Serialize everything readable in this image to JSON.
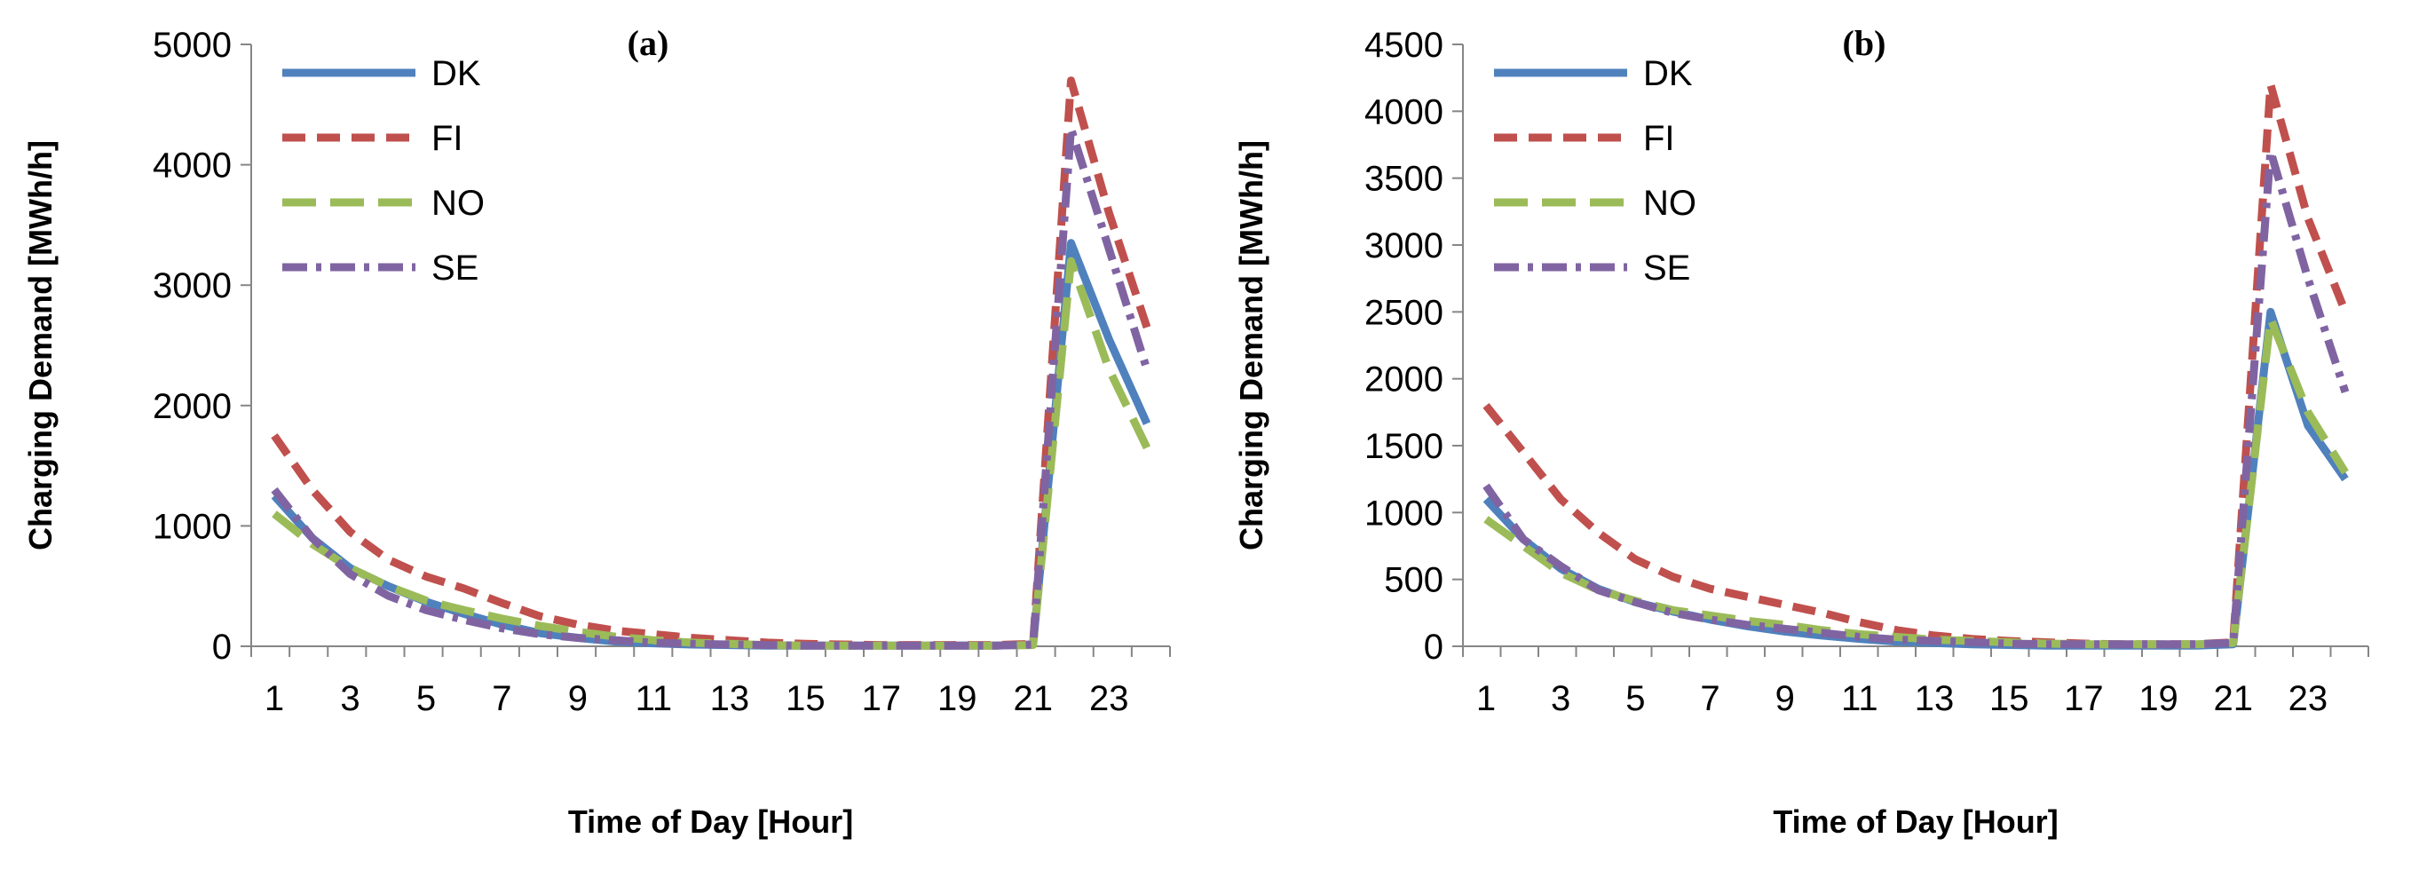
{
  "chart_data": [
    {
      "type": "line",
      "panel_label": "(a)",
      "xlabel": "Time of Day [Hour]",
      "ylabel": "Charging Demand [MWh/h]",
      "ylim": [
        0,
        5000
      ],
      "yticks": [
        0,
        1000,
        2000,
        3000,
        4000,
        5000
      ],
      "xlim": [
        1,
        24
      ],
      "xticks": [
        1,
        3,
        5,
        7,
        9,
        11,
        13,
        15,
        17,
        19,
        21,
        23
      ],
      "legend_position": "top-left",
      "x": [
        1,
        2,
        3,
        4,
        5,
        6,
        7,
        8,
        9,
        10,
        11,
        12,
        13,
        14,
        15,
        16,
        17,
        18,
        19,
        20,
        21,
        22,
        23,
        24
      ],
      "series": [
        {
          "name": "DK",
          "color": "#4f81bd",
          "dash": "solid",
          "values": [
            1250,
            900,
            650,
            500,
            370,
            270,
            180,
            110,
            70,
            40,
            25,
            15,
            10,
            5,
            5,
            5,
            5,
            5,
            5,
            5,
            15,
            3350,
            2550,
            1850
          ]
        },
        {
          "name": "FI",
          "color": "#c0504d",
          "dash": "dash",
          "values": [
            1750,
            1300,
            950,
            720,
            580,
            480,
            360,
            250,
            180,
            130,
            100,
            70,
            50,
            30,
            20,
            15,
            10,
            10,
            10,
            10,
            20,
            4700,
            3600,
            2650
          ]
        },
        {
          "name": "NO",
          "color": "#9bbb59",
          "dash": "longdash",
          "values": [
            1100,
            850,
            650,
            500,
            380,
            300,
            230,
            170,
            120,
            80,
            50,
            30,
            20,
            10,
            5,
            5,
            5,
            5,
            5,
            5,
            10,
            3200,
            2300,
            1650
          ]
        },
        {
          "name": "SE",
          "color": "#8064a2",
          "dash": "dashdot",
          "values": [
            1300,
            900,
            600,
            420,
            300,
            220,
            150,
            100,
            70,
            50,
            30,
            20,
            15,
            10,
            5,
            5,
            5,
            5,
            5,
            5,
            15,
            4300,
            3300,
            2300
          ]
        }
      ]
    },
    {
      "type": "line",
      "panel_label": "(b)",
      "xlabel": "Time of Day [Hour]",
      "ylabel": "Charging Demand [MWh/h]",
      "ylim": [
        0,
        4500
      ],
      "yticks": [
        0,
        500,
        1000,
        1500,
        2000,
        2500,
        3000,
        3500,
        4000,
        4500
      ],
      "xlim": [
        1,
        24
      ],
      "xticks": [
        1,
        3,
        5,
        7,
        9,
        11,
        13,
        15,
        17,
        19,
        21,
        23
      ],
      "legend_position": "top-left",
      "x": [
        1,
        2,
        3,
        4,
        5,
        6,
        7,
        8,
        9,
        10,
        11,
        12,
        13,
        14,
        15,
        16,
        17,
        18,
        19,
        20,
        21,
        22,
        23,
        24
      ],
      "series": [
        {
          "name": "DK",
          "color": "#4f81bd",
          "dash": "solid",
          "values": [
            1100,
            800,
            580,
            430,
            330,
            260,
            200,
            150,
            110,
            80,
            55,
            35,
            25,
            15,
            10,
            5,
            5,
            5,
            5,
            5,
            15,
            2500,
            1650,
            1250
          ]
        },
        {
          "name": "FI",
          "color": "#c0504d",
          "dash": "dash",
          "values": [
            1800,
            1450,
            1100,
            850,
            650,
            520,
            430,
            370,
            310,
            250,
            180,
            120,
            80,
            55,
            40,
            30,
            20,
            15,
            15,
            15,
            30,
            4200,
            3200,
            2500
          ]
        },
        {
          "name": "NO",
          "color": "#9bbb59",
          "dash": "longdash",
          "values": [
            950,
            750,
            550,
            420,
            340,
            270,
            230,
            190,
            160,
            120,
            90,
            70,
            50,
            40,
            30,
            20,
            15,
            15,
            15,
            15,
            25,
            2450,
            1750,
            1300
          ]
        },
        {
          "name": "SE",
          "color": "#8064a2",
          "dash": "dashdot",
          "values": [
            1200,
            800,
            600,
            420,
            330,
            250,
            200,
            160,
            130,
            100,
            70,
            50,
            40,
            30,
            20,
            15,
            15,
            15,
            15,
            15,
            25,
            3700,
            2750,
            1900
          ]
        }
      ]
    }
  ]
}
